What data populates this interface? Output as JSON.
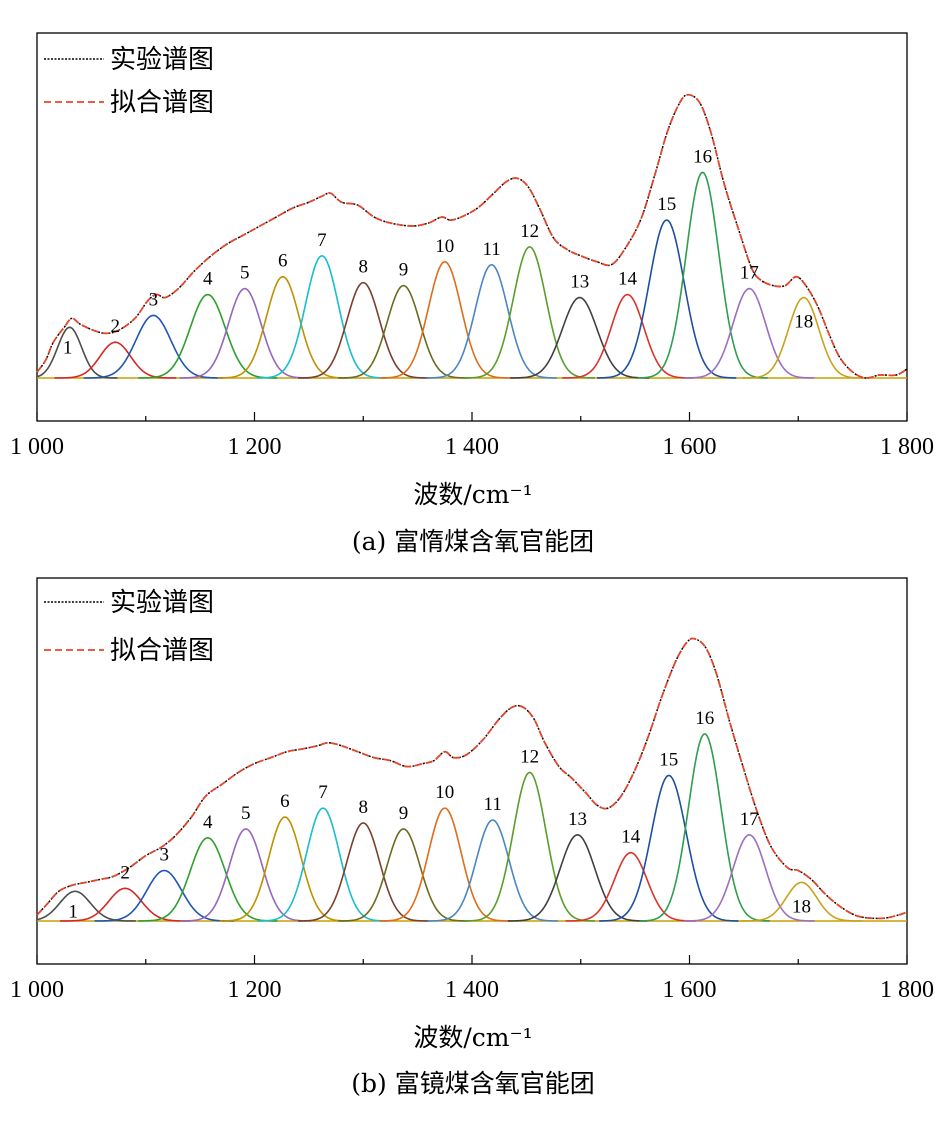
{
  "legend": {
    "experimental": "实验谱图",
    "fitted": "拟合谱图"
  },
  "x_axis_title": "波数/cm⁻¹",
  "chart_data": [
    {
      "id": "a",
      "type": "line",
      "caption": "(a) 富惰煤含氧官能团",
      "xlabel": "波数/cm⁻¹",
      "xlim": [
        1000,
        1800
      ],
      "x_ticks": [
        1000,
        1200,
        1400,
        1600,
        1800
      ],
      "x_tick_labels": [
        "1 000",
        "1 200",
        "1 400",
        "1 600",
        "1 800"
      ],
      "minor_ticks": [
        1100,
        1300,
        1500,
        1700
      ],
      "ylim": [
        0,
        1
      ],
      "grid": false,
      "legend_position": "top-left",
      "series": [
        {
          "name": "实验谱图",
          "color": "#000000"
        },
        {
          "name": "拟合谱图",
          "color": "#e8452c"
        }
      ],
      "experimental": [
        [
          1000,
          0.02
        ],
        [
          1008,
          0.06
        ],
        [
          1015,
          0.12
        ],
        [
          1025,
          0.17
        ],
        [
          1032,
          0.2
        ],
        [
          1040,
          0.18
        ],
        [
          1052,
          0.16
        ],
        [
          1063,
          0.15
        ],
        [
          1075,
          0.16
        ],
        [
          1090,
          0.2
        ],
        [
          1102,
          0.26
        ],
        [
          1110,
          0.28
        ],
        [
          1118,
          0.27
        ],
        [
          1130,
          0.3
        ],
        [
          1145,
          0.36
        ],
        [
          1160,
          0.41
        ],
        [
          1175,
          0.45
        ],
        [
          1190,
          0.48
        ],
        [
          1205,
          0.51
        ],
        [
          1220,
          0.54
        ],
        [
          1235,
          0.57
        ],
        [
          1250,
          0.59
        ],
        [
          1262,
          0.61
        ],
        [
          1270,
          0.62
        ],
        [
          1280,
          0.59
        ],
        [
          1295,
          0.58
        ],
        [
          1310,
          0.54
        ],
        [
          1325,
          0.52
        ],
        [
          1345,
          0.51
        ],
        [
          1360,
          0.52
        ],
        [
          1372,
          0.54
        ],
        [
          1380,
          0.53
        ],
        [
          1390,
          0.54
        ],
        [
          1405,
          0.57
        ],
        [
          1420,
          0.62
        ],
        [
          1432,
          0.66
        ],
        [
          1442,
          0.67
        ],
        [
          1452,
          0.64
        ],
        [
          1462,
          0.57
        ],
        [
          1475,
          0.47
        ],
        [
          1488,
          0.43
        ],
        [
          1500,
          0.41
        ],
        [
          1515,
          0.39
        ],
        [
          1528,
          0.38
        ],
        [
          1540,
          0.43
        ],
        [
          1555,
          0.53
        ],
        [
          1568,
          0.68
        ],
        [
          1580,
          0.83
        ],
        [
          1592,
          0.93
        ],
        [
          1600,
          0.95
        ],
        [
          1610,
          0.92
        ],
        [
          1620,
          0.82
        ],
        [
          1632,
          0.65
        ],
        [
          1645,
          0.5
        ],
        [
          1657,
          0.37
        ],
        [
          1665,
          0.33
        ],
        [
          1677,
          0.31
        ],
        [
          1688,
          0.31
        ],
        [
          1698,
          0.34
        ],
        [
          1707,
          0.31
        ],
        [
          1718,
          0.24
        ],
        [
          1728,
          0.15
        ],
        [
          1738,
          0.07
        ],
        [
          1750,
          0.02
        ],
        [
          1762,
          0.0
        ],
        [
          1775,
          0.01
        ],
        [
          1790,
          0.01
        ],
        [
          1800,
          0.03
        ]
      ],
      "peaks": [
        {
          "label": "1",
          "center": 1030,
          "height": 0.17,
          "width": 11,
          "color": "#4d4d4d"
        },
        {
          "label": "2",
          "center": 1072,
          "height": 0.12,
          "width": 14,
          "color": "#d62728"
        },
        {
          "label": "3",
          "center": 1107,
          "height": 0.21,
          "width": 16,
          "color": "#1f55b4"
        },
        {
          "label": "4",
          "center": 1157,
          "height": 0.28,
          "width": 16,
          "color": "#2ca02c"
        },
        {
          "label": "5",
          "center": 1191,
          "height": 0.3,
          "width": 15,
          "color": "#9467bd"
        },
        {
          "label": "6",
          "center": 1226,
          "height": 0.34,
          "width": 15,
          "color": "#bf9000"
        },
        {
          "label": "7",
          "center": 1262,
          "height": 0.41,
          "width": 15,
          "color": "#17becf"
        },
        {
          "label": "8",
          "center": 1300,
          "height": 0.32,
          "width": 15,
          "color": "#7b3f2e"
        },
        {
          "label": "9",
          "center": 1337,
          "height": 0.31,
          "width": 15,
          "color": "#6b6b1f"
        },
        {
          "label": "10",
          "center": 1375,
          "height": 0.39,
          "width": 15,
          "color": "#e06c1a"
        },
        {
          "label": "11",
          "center": 1418,
          "height": 0.38,
          "width": 15,
          "color": "#4a86c5"
        },
        {
          "label": "12",
          "center": 1453,
          "height": 0.44,
          "width": 15,
          "color": "#5a9e2a"
        },
        {
          "label": "13",
          "center": 1499,
          "height": 0.27,
          "width": 16,
          "color": "#404040"
        },
        {
          "label": "14",
          "center": 1543,
          "height": 0.28,
          "width": 15,
          "color": "#d9342b"
        },
        {
          "label": "15",
          "center": 1579,
          "height": 0.53,
          "width": 16,
          "color": "#1f4fa0"
        },
        {
          "label": "16",
          "center": 1612,
          "height": 0.69,
          "width": 15,
          "color": "#2e9e4f"
        },
        {
          "label": "17",
          "center": 1655,
          "height": 0.3,
          "width": 15,
          "color": "#9b6fc3"
        },
        {
          "label": "18",
          "center": 1705,
          "height": 0.27,
          "width": 14,
          "color": "#c9a21c"
        }
      ]
    },
    {
      "id": "b",
      "type": "line",
      "caption": "(b) 富镜煤含氧官能团",
      "xlabel": "波数/cm⁻¹",
      "xlim": [
        1000,
        1800
      ],
      "x_ticks": [
        1000,
        1200,
        1400,
        1600,
        1800
      ],
      "x_tick_labels": [
        "1 000",
        "1 200",
        "1 400",
        "1 600",
        "1 800"
      ],
      "minor_ticks": [
        1100,
        1300,
        1500,
        1700
      ],
      "ylim": [
        0,
        1
      ],
      "grid": false,
      "legend_position": "top-left",
      "series": [
        {
          "name": "实验谱图",
          "color": "#000000"
        },
        {
          "name": "拟合谱图",
          "color": "#e8452c"
        }
      ],
      "experimental": [
        [
          1000,
          0.02
        ],
        [
          1010,
          0.06
        ],
        [
          1020,
          0.1
        ],
        [
          1032,
          0.12
        ],
        [
          1045,
          0.13
        ],
        [
          1058,
          0.14
        ],
        [
          1070,
          0.15
        ],
        [
          1085,
          0.18
        ],
        [
          1100,
          0.22
        ],
        [
          1115,
          0.25
        ],
        [
          1128,
          0.29
        ],
        [
          1142,
          0.35
        ],
        [
          1155,
          0.42
        ],
        [
          1170,
          0.46
        ],
        [
          1185,
          0.5
        ],
        [
          1200,
          0.53
        ],
        [
          1215,
          0.55
        ],
        [
          1230,
          0.57
        ],
        [
          1245,
          0.58
        ],
        [
          1258,
          0.59
        ],
        [
          1268,
          0.6
        ],
        [
          1280,
          0.59
        ],
        [
          1295,
          0.57
        ],
        [
          1310,
          0.55
        ],
        [
          1325,
          0.54
        ],
        [
          1340,
          0.52
        ],
        [
          1355,
          0.53
        ],
        [
          1365,
          0.54
        ],
        [
          1375,
          0.57
        ],
        [
          1383,
          0.55
        ],
        [
          1395,
          0.56
        ],
        [
          1410,
          0.61
        ],
        [
          1425,
          0.68
        ],
        [
          1437,
          0.72
        ],
        [
          1447,
          0.72
        ],
        [
          1457,
          0.68
        ],
        [
          1467,
          0.6
        ],
        [
          1480,
          0.52
        ],
        [
          1492,
          0.48
        ],
        [
          1505,
          0.43
        ],
        [
          1515,
          0.39
        ],
        [
          1525,
          0.38
        ],
        [
          1537,
          0.42
        ],
        [
          1550,
          0.51
        ],
        [
          1562,
          0.62
        ],
        [
          1575,
          0.76
        ],
        [
          1588,
          0.88
        ],
        [
          1598,
          0.94
        ],
        [
          1605,
          0.95
        ],
        [
          1615,
          0.92
        ],
        [
          1625,
          0.83
        ],
        [
          1637,
          0.67
        ],
        [
          1650,
          0.51
        ],
        [
          1662,
          0.37
        ],
        [
          1675,
          0.25
        ],
        [
          1690,
          0.18
        ],
        [
          1700,
          0.17
        ],
        [
          1712,
          0.14
        ],
        [
          1725,
          0.09
        ],
        [
          1738,
          0.05
        ],
        [
          1752,
          0.02
        ],
        [
          1765,
          0.01
        ],
        [
          1780,
          0.01
        ],
        [
          1792,
          0.02
        ],
        [
          1800,
          0.03
        ]
      ],
      "peaks": [
        {
          "label": "1",
          "center": 1035,
          "height": 0.1,
          "width": 14,
          "color": "#4d4d4d"
        },
        {
          "label": "2",
          "center": 1081,
          "height": 0.11,
          "width": 15,
          "color": "#d62728"
        },
        {
          "label": "3",
          "center": 1117,
          "height": 0.17,
          "width": 16,
          "color": "#1f55b4"
        },
        {
          "label": "4",
          "center": 1157,
          "height": 0.28,
          "width": 16,
          "color": "#2ca02c"
        },
        {
          "label": "5",
          "center": 1192,
          "height": 0.31,
          "width": 15,
          "color": "#9467bd"
        },
        {
          "label": "6",
          "center": 1228,
          "height": 0.35,
          "width": 15,
          "color": "#bf9000"
        },
        {
          "label": "7",
          "center": 1263,
          "height": 0.38,
          "width": 15,
          "color": "#17becf"
        },
        {
          "label": "8",
          "center": 1300,
          "height": 0.33,
          "width": 15,
          "color": "#7b3f2e"
        },
        {
          "label": "9",
          "center": 1337,
          "height": 0.31,
          "width": 15,
          "color": "#6b6b1f"
        },
        {
          "label": "10",
          "center": 1375,
          "height": 0.38,
          "width": 15,
          "color": "#e06c1a"
        },
        {
          "label": "11",
          "center": 1419,
          "height": 0.34,
          "width": 15,
          "color": "#4a86c5"
        },
        {
          "label": "12",
          "center": 1453,
          "height": 0.5,
          "width": 15,
          "color": "#5a9e2a"
        },
        {
          "label": "13",
          "center": 1497,
          "height": 0.29,
          "width": 16,
          "color": "#404040"
        },
        {
          "label": "14",
          "center": 1546,
          "height": 0.23,
          "width": 15,
          "color": "#d9342b"
        },
        {
          "label": "15",
          "center": 1581,
          "height": 0.49,
          "width": 16,
          "color": "#1f4fa0"
        },
        {
          "label": "16",
          "center": 1614,
          "height": 0.63,
          "width": 15,
          "color": "#2e9e4f"
        },
        {
          "label": "17",
          "center": 1655,
          "height": 0.29,
          "width": 15,
          "color": "#9b6fc3"
        },
        {
          "label": "18",
          "center": 1703,
          "height": 0.13,
          "width": 14,
          "color": "#c9a21c"
        }
      ]
    }
  ]
}
